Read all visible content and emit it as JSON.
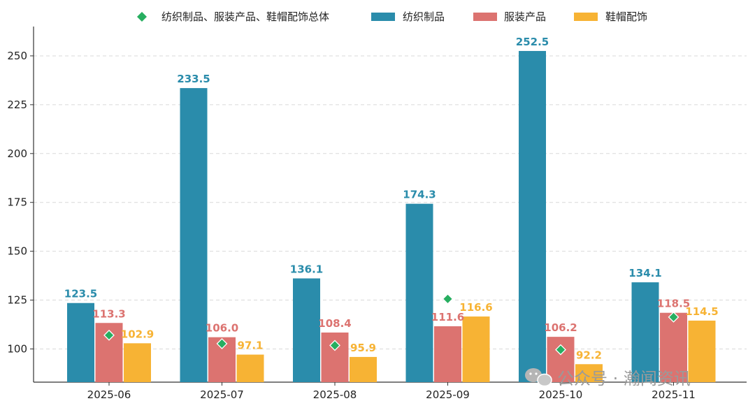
{
  "chart_data": {
    "type": "bar",
    "title": "",
    "xlabel": "",
    "ylabel": "",
    "ylim": [
      83,
      265
    ],
    "yticks": [
      100,
      125,
      150,
      175,
      200,
      225,
      250
    ],
    "grid": true,
    "legend_position": "top-center",
    "categories": [
      "2025-06",
      "2025-07",
      "2025-08",
      "2025-09",
      "2025-10",
      "2025-11"
    ],
    "series": [
      {
        "name": "纺织制品",
        "color": "#2a8cab",
        "values": [
          123.5,
          233.5,
          136.1,
          174.3,
          252.5,
          134.1
        ]
      },
      {
        "name": "服装产品",
        "color": "#dc7370",
        "values": [
          113.3,
          106.0,
          108.4,
          111.6,
          106.2,
          118.5
        ]
      },
      {
        "name": "鞋帽配饰",
        "color": "#f7b334",
        "values": [
          102.9,
          97.1,
          95.9,
          116.6,
          92.2,
          114.5
        ]
      }
    ],
    "total_series": {
      "name": "纺织制品、服装产品、鞋帽配饰总体",
      "color": "#27ae60",
      "marker": "diamond",
      "values": [
        107.0,
        102.7,
        101.8,
        125.6,
        99.6,
        116.3
      ]
    }
  },
  "watermark": {
    "text": "公众号 · 瀚闻资讯",
    "icon": "wechat-icon"
  }
}
